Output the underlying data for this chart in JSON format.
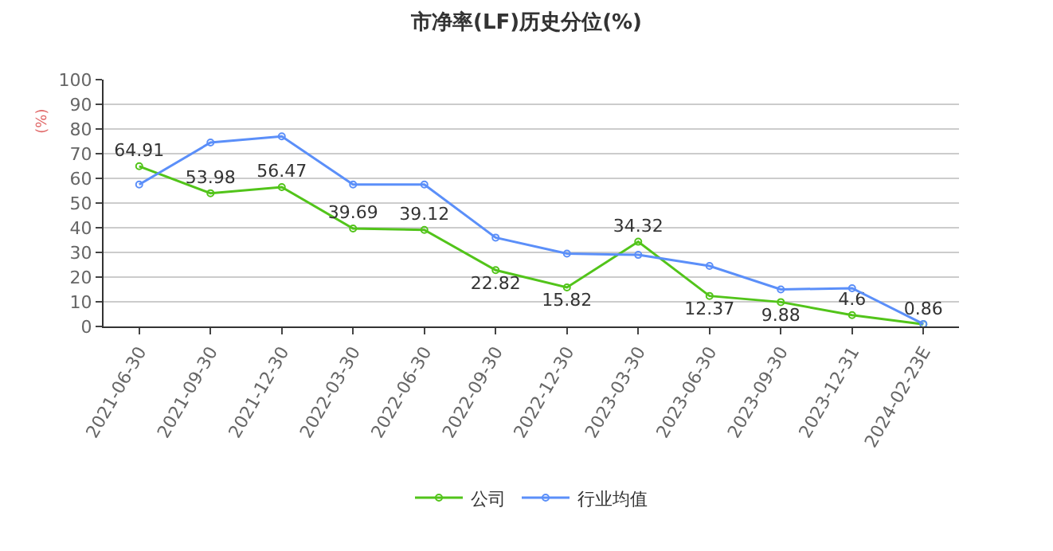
{
  "chart_data": {
    "type": "line",
    "title": "市净率(LF)历史分位(%)",
    "ylabel": "(%)",
    "categories": [
      "2021-06-30",
      "2021-09-30",
      "2021-12-30",
      "2022-03-30",
      "2022-06-30",
      "2022-09-30",
      "2022-12-30",
      "2023-03-30",
      "2023-06-30",
      "2023-09-30",
      "2023-12-31",
      "2024-02-23E"
    ],
    "series": [
      {
        "name": "公司",
        "color": "#52c41a",
        "values": [
          64.91,
          53.98,
          56.47,
          39.69,
          39.12,
          22.82,
          15.82,
          34.32,
          12.37,
          9.88,
          4.6,
          0.86
        ],
        "value_labels": [
          "64.91",
          "53.98",
          "56.47",
          "39.69",
          "39.12",
          "22.82",
          "15.82",
          "34.32",
          "12.37",
          "9.88",
          "4.6",
          "0.86"
        ]
      },
      {
        "name": "行业均值",
        "color": "#5b8ff9",
        "values": [
          57.5,
          74.5,
          77,
          57.5,
          57.5,
          36,
          29.5,
          29,
          24.5,
          15,
          15.5,
          1
        ]
      }
    ],
    "ylim": [
      0,
      100
    ],
    "yticks": [
      0,
      10,
      20,
      30,
      40,
      50,
      60,
      70,
      80,
      90,
      100
    ],
    "grid": "y",
    "legend": "bottom",
    "marker": "circle",
    "line_style": "solid"
  }
}
